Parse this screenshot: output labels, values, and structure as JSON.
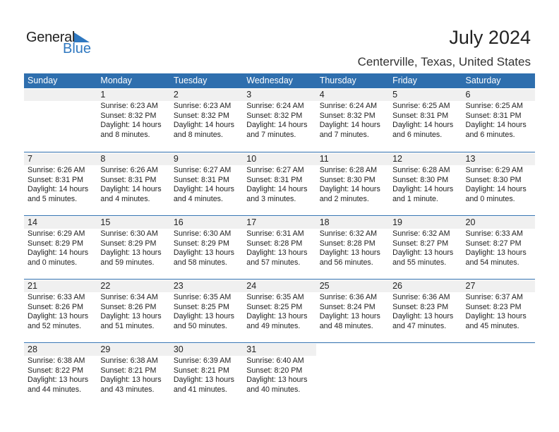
{
  "logo": {
    "word1": "General",
    "word2": "Blue",
    "color": "#2f78c0"
  },
  "title": "July 2024",
  "location": "Centerville, Texas, United States",
  "colors": {
    "header_bg": "#2f6fae",
    "date_bg": "#f0f0f0"
  },
  "weekdays": [
    "Sunday",
    "Monday",
    "Tuesday",
    "Wednesday",
    "Thursday",
    "Friday",
    "Saturday"
  ],
  "weeks": [
    [
      null,
      {
        "day": "1",
        "sunrise": "Sunrise: 6:23 AM",
        "sunset": "Sunset: 8:32 PM",
        "daylight": "Daylight: 14 hours",
        "daylight2": "and 8 minutes."
      },
      {
        "day": "2",
        "sunrise": "Sunrise: 6:23 AM",
        "sunset": "Sunset: 8:32 PM",
        "daylight": "Daylight: 14 hours",
        "daylight2": "and 8 minutes."
      },
      {
        "day": "3",
        "sunrise": "Sunrise: 6:24 AM",
        "sunset": "Sunset: 8:32 PM",
        "daylight": "Daylight: 14 hours",
        "daylight2": "and 7 minutes."
      },
      {
        "day": "4",
        "sunrise": "Sunrise: 6:24 AM",
        "sunset": "Sunset: 8:32 PM",
        "daylight": "Daylight: 14 hours",
        "daylight2": "and 7 minutes."
      },
      {
        "day": "5",
        "sunrise": "Sunrise: 6:25 AM",
        "sunset": "Sunset: 8:31 PM",
        "daylight": "Daylight: 14 hours",
        "daylight2": "and 6 minutes."
      },
      {
        "day": "6",
        "sunrise": "Sunrise: 6:25 AM",
        "sunset": "Sunset: 8:31 PM",
        "daylight": "Daylight: 14 hours",
        "daylight2": "and 6 minutes."
      }
    ],
    [
      {
        "day": "7",
        "sunrise": "Sunrise: 6:26 AM",
        "sunset": "Sunset: 8:31 PM",
        "daylight": "Daylight: 14 hours",
        "daylight2": "and 5 minutes."
      },
      {
        "day": "8",
        "sunrise": "Sunrise: 6:26 AM",
        "sunset": "Sunset: 8:31 PM",
        "daylight": "Daylight: 14 hours",
        "daylight2": "and 4 minutes."
      },
      {
        "day": "9",
        "sunrise": "Sunrise: 6:27 AM",
        "sunset": "Sunset: 8:31 PM",
        "daylight": "Daylight: 14 hours",
        "daylight2": "and 4 minutes."
      },
      {
        "day": "10",
        "sunrise": "Sunrise: 6:27 AM",
        "sunset": "Sunset: 8:31 PM",
        "daylight": "Daylight: 14 hours",
        "daylight2": "and 3 minutes."
      },
      {
        "day": "11",
        "sunrise": "Sunrise: 6:28 AM",
        "sunset": "Sunset: 8:30 PM",
        "daylight": "Daylight: 14 hours",
        "daylight2": "and 2 minutes."
      },
      {
        "day": "12",
        "sunrise": "Sunrise: 6:28 AM",
        "sunset": "Sunset: 8:30 PM",
        "daylight": "Daylight: 14 hours",
        "daylight2": "and 1 minute."
      },
      {
        "day": "13",
        "sunrise": "Sunrise: 6:29 AM",
        "sunset": "Sunset: 8:30 PM",
        "daylight": "Daylight: 14 hours",
        "daylight2": "and 0 minutes."
      }
    ],
    [
      {
        "day": "14",
        "sunrise": "Sunrise: 6:29 AM",
        "sunset": "Sunset: 8:29 PM",
        "daylight": "Daylight: 14 hours",
        "daylight2": "and 0 minutes."
      },
      {
        "day": "15",
        "sunrise": "Sunrise: 6:30 AM",
        "sunset": "Sunset: 8:29 PM",
        "daylight": "Daylight: 13 hours",
        "daylight2": "and 59 minutes."
      },
      {
        "day": "16",
        "sunrise": "Sunrise: 6:30 AM",
        "sunset": "Sunset: 8:29 PM",
        "daylight": "Daylight: 13 hours",
        "daylight2": "and 58 minutes."
      },
      {
        "day": "17",
        "sunrise": "Sunrise: 6:31 AM",
        "sunset": "Sunset: 8:28 PM",
        "daylight": "Daylight: 13 hours",
        "daylight2": "and 57 minutes."
      },
      {
        "day": "18",
        "sunrise": "Sunrise: 6:32 AM",
        "sunset": "Sunset: 8:28 PM",
        "daylight": "Daylight: 13 hours",
        "daylight2": "and 56 minutes."
      },
      {
        "day": "19",
        "sunrise": "Sunrise: 6:32 AM",
        "sunset": "Sunset: 8:27 PM",
        "daylight": "Daylight: 13 hours",
        "daylight2": "and 55 minutes."
      },
      {
        "day": "20",
        "sunrise": "Sunrise: 6:33 AM",
        "sunset": "Sunset: 8:27 PM",
        "daylight": "Daylight: 13 hours",
        "daylight2": "and 54 minutes."
      }
    ],
    [
      {
        "day": "21",
        "sunrise": "Sunrise: 6:33 AM",
        "sunset": "Sunset: 8:26 PM",
        "daylight": "Daylight: 13 hours",
        "daylight2": "and 52 minutes."
      },
      {
        "day": "22",
        "sunrise": "Sunrise: 6:34 AM",
        "sunset": "Sunset: 8:26 PM",
        "daylight": "Daylight: 13 hours",
        "daylight2": "and 51 minutes."
      },
      {
        "day": "23",
        "sunrise": "Sunrise: 6:35 AM",
        "sunset": "Sunset: 8:25 PM",
        "daylight": "Daylight: 13 hours",
        "daylight2": "and 50 minutes."
      },
      {
        "day": "24",
        "sunrise": "Sunrise: 6:35 AM",
        "sunset": "Sunset: 8:25 PM",
        "daylight": "Daylight: 13 hours",
        "daylight2": "and 49 minutes."
      },
      {
        "day": "25",
        "sunrise": "Sunrise: 6:36 AM",
        "sunset": "Sunset: 8:24 PM",
        "daylight": "Daylight: 13 hours",
        "daylight2": "and 48 minutes."
      },
      {
        "day": "26",
        "sunrise": "Sunrise: 6:36 AM",
        "sunset": "Sunset: 8:23 PM",
        "daylight": "Daylight: 13 hours",
        "daylight2": "and 47 minutes."
      },
      {
        "day": "27",
        "sunrise": "Sunrise: 6:37 AM",
        "sunset": "Sunset: 8:23 PM",
        "daylight": "Daylight: 13 hours",
        "daylight2": "and 45 minutes."
      }
    ],
    [
      {
        "day": "28",
        "sunrise": "Sunrise: 6:38 AM",
        "sunset": "Sunset: 8:22 PM",
        "daylight": "Daylight: 13 hours",
        "daylight2": "and 44 minutes."
      },
      {
        "day": "29",
        "sunrise": "Sunrise: 6:38 AM",
        "sunset": "Sunset: 8:21 PM",
        "daylight": "Daylight: 13 hours",
        "daylight2": "and 43 minutes."
      },
      {
        "day": "30",
        "sunrise": "Sunrise: 6:39 AM",
        "sunset": "Sunset: 8:21 PM",
        "daylight": "Daylight: 13 hours",
        "daylight2": "and 41 minutes."
      },
      {
        "day": "31",
        "sunrise": "Sunrise: 6:40 AM",
        "sunset": "Sunset: 8:20 PM",
        "daylight": "Daylight: 13 hours",
        "daylight2": "and 40 minutes."
      },
      null,
      null,
      null
    ]
  ]
}
